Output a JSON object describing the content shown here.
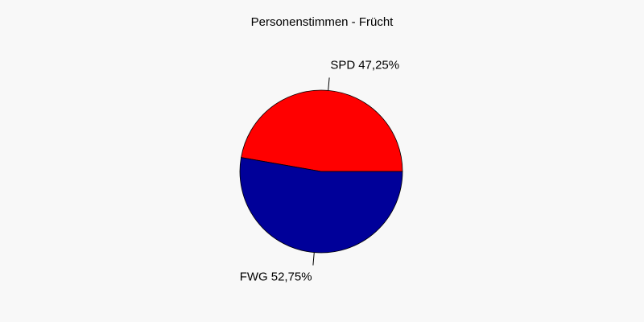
{
  "chart_data": {
    "type": "pie",
    "title": "Personenstimmen - Frücht",
    "categories": [
      "SPD",
      "FWG"
    ],
    "values": [
      47.25,
      52.75
    ],
    "value_labels": [
      "47,25%",
      "52,75%"
    ],
    "colors": [
      "#ff0000",
      "#000099"
    ]
  }
}
